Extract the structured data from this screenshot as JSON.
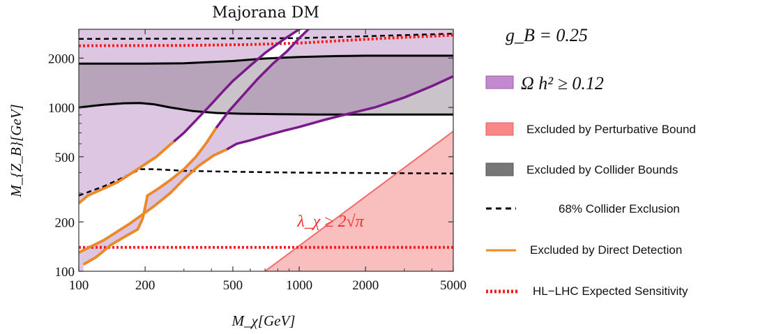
{
  "chart_data": {
    "type": "area",
    "title": "Majorana DM",
    "xlabel": "M_χ[GeV]",
    "ylabel": "M_{Z_B}[GeV]",
    "xscale": "log",
    "yscale": "log",
    "xlim": [
      100,
      5000
    ],
    "ylim": [
      100,
      3000
    ],
    "x_ticks": [
      "100",
      "200",
      "500",
      "1000",
      "2000",
      "5000"
    ],
    "y_ticks": [
      "100",
      "200",
      "500",
      "1000",
      "2000"
    ],
    "coupling_label": "g_B = 0.25",
    "annotation": "λ_χ ≥ 2√π",
    "colors": {
      "relic": "#b26bc0",
      "relic_fill": "#dcc6e2",
      "perturbative": "#f59a9a",
      "collider": "#7a6a7a",
      "direct_detection": "#f08a1c",
      "hl_lhc": "#ff1a1a",
      "contour": "#000000",
      "relic_edge": "#7a1a8a"
    },
    "legend": [
      {
        "label": "Ω h² ≥ 0.12",
        "kind": "purple-swatch"
      },
      {
        "label": "Excluded by Perturbative Bound",
        "kind": "red-swatch"
      },
      {
        "label": "Excluded by Collider Bounds",
        "kind": "gray-swatch"
      },
      {
        "label": "68% Collider Exclusion",
        "kind": "black-dashed"
      },
      {
        "label": "Excluded by Direct Detection",
        "kind": "orange-line"
      },
      {
        "label": "HL−LHC Expected Sensitivity",
        "kind": "red-dotted"
      }
    ],
    "series": {
      "collider_upper": {
        "x": [
          100,
          200,
          300,
          500,
          700,
          1000,
          1500,
          2000,
          3000,
          5000
        ],
        "y": [
          1850,
          1850,
          1860,
          1920,
          1990,
          2030,
          2060,
          2070,
          2070,
          2070
        ]
      },
      "collider_lower": {
        "x": [
          100,
          130,
          160,
          190,
          220,
          260,
          330,
          420,
          550,
          800,
          1200,
          2000,
          5000
        ],
        "y": [
          1000,
          1040,
          1060,
          1065,
          1045,
          1000,
          950,
          925,
          915,
          910,
          905,
          905,
          905
        ]
      },
      "dashed_upper": {
        "x": [
          100,
          300,
          1000,
          2000,
          5000
        ],
        "y": [
          2620,
          2630,
          2650,
          2720,
          2820
        ]
      },
      "dashed_lower": {
        "x": [
          100,
          130,
          160,
          190,
          220,
          300,
          500,
          1000,
          2000,
          5000
        ],
        "y": [
          290,
          330,
          375,
          420,
          420,
          410,
          405,
          400,
          398,
          395
        ]
      },
      "hl_lhc_upper": {
        "x": [
          100,
          300,
          600,
          1000,
          1500,
          2500,
          5000
        ],
        "y": [
          2380,
          2390,
          2420,
          2470,
          2550,
          2650,
          2760
        ]
      },
      "hl_lhc_lower": {
        "x": [
          100,
          5000
        ],
        "y": [
          140,
          140
        ]
      },
      "relic_left": {
        "x": [
          100,
          110,
          130,
          150,
          175,
          200,
          225,
          255,
          300,
          350,
          400,
          450,
          500,
          600,
          700,
          850,
          1000,
          1200,
          1500
        ],
        "y": [
          260,
          290,
          320,
          350,
          400,
          450,
          500,
          580,
          700,
          870,
          1050,
          1250,
          1450,
          1800,
          2150,
          2600,
          3000,
          3300,
          3600
        ]
      },
      "relic_mid": {
        "x": [
          105,
          120,
          140,
          165,
          185,
          195,
          205,
          230,
          260,
          300,
          340,
          380,
          420,
          480,
          560,
          650,
          760,
          880,
          1000,
          1100,
          1200
        ],
        "y": [
          110,
          122,
          145,
          165,
          180,
          210,
          290,
          320,
          360,
          420,
          500,
          610,
          750,
          950,
          1200,
          1500,
          1850,
          2200,
          2650,
          3000,
          3300
        ]
      },
      "relic_right": {
        "x": [
          100,
          130,
          170,
          220,
          260,
          300,
          350,
          410,
          470,
          520,
          600,
          700,
          850,
          1000,
          1300,
          1700,
          2200,
          3000,
          4000,
          5000
        ],
        "y": [
          130,
          155,
          195,
          250,
          300,
          365,
          440,
          510,
          555,
          600,
          630,
          670,
          720,
          760,
          840,
          920,
          1000,
          1150,
          1350,
          1550
        ]
      },
      "perturbative_line": {
        "x": [
          700,
          1000,
          2000,
          3000,
          5000
        ],
        "y": [
          100,
          143,
          286,
          429,
          715
        ]
      },
      "direct_detection_1": {
        "x": [
          100,
          110,
          130,
          150,
          175,
          200,
          225,
          255,
          270
        ],
        "y": [
          260,
          290,
          320,
          350,
          400,
          450,
          500,
          580,
          620
        ]
      },
      "direct_detection_2": {
        "x": [
          105,
          120,
          140,
          165,
          185,
          195,
          205,
          230,
          260,
          300,
          340,
          380,
          420
        ],
        "y": [
          110,
          122,
          145,
          165,
          180,
          210,
          290,
          320,
          360,
          420,
          500,
          610,
          750
        ]
      },
      "direct_detection_3": {
        "x": [
          100,
          130,
          170,
          220,
          260,
          300,
          350,
          410,
          470
        ],
        "y": [
          130,
          155,
          195,
          250,
          300,
          365,
          440,
          510,
          555
        ]
      }
    }
  }
}
